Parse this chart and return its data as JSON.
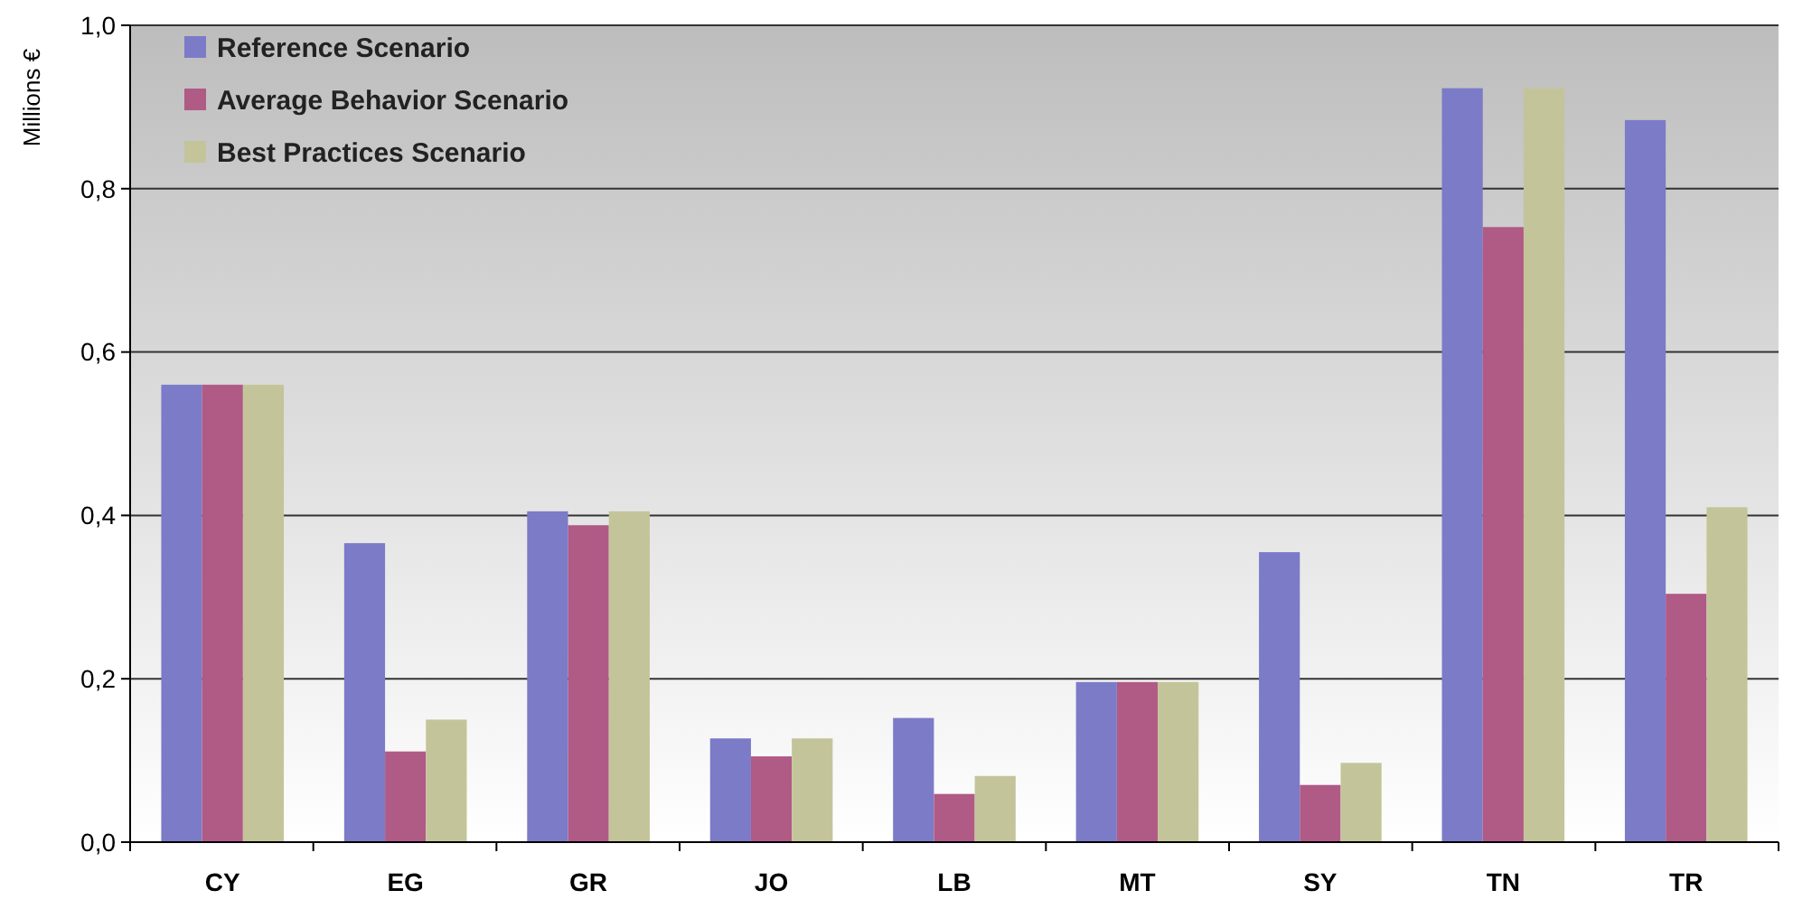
{
  "chart_data": {
    "type": "bar",
    "ylabel": "Millions €",
    "categories": [
      "CY",
      "EG",
      "GR",
      "JO",
      "LB",
      "MT",
      "SY",
      "TN",
      "TR"
    ],
    "series": [
      {
        "name": "Reference Scenario",
        "color": "#7b7bc8",
        "values": [
          0.56,
          0.366,
          0.405,
          0.127,
          0.152,
          0.196,
          0.355,
          0.923,
          0.884
        ]
      },
      {
        "name": "Average Behavior Scenario",
        "color": "#b05a86",
        "values": [
          0.56,
          0.111,
          0.388,
          0.105,
          0.059,
          0.196,
          0.07,
          0.753,
          0.304
        ]
      },
      {
        "name": "Best Practices Scenario",
        "color": "#c4c49a",
        "values": [
          0.56,
          0.15,
          0.405,
          0.127,
          0.081,
          0.196,
          0.097,
          0.923,
          0.41
        ]
      }
    ],
    "ylim": [
      0,
      1
    ],
    "yticks": [
      {
        "value": 0,
        "label": "0,0"
      },
      {
        "value": 0.2,
        "label": "0,2"
      },
      {
        "value": 0.4,
        "label": "0,4"
      },
      {
        "value": 0.6,
        "label": "0,6"
      },
      {
        "value": 0.8,
        "label": "0,8"
      },
      {
        "value": 1,
        "label": "1,0"
      }
    ],
    "grid": "y",
    "legend": "top left"
  }
}
